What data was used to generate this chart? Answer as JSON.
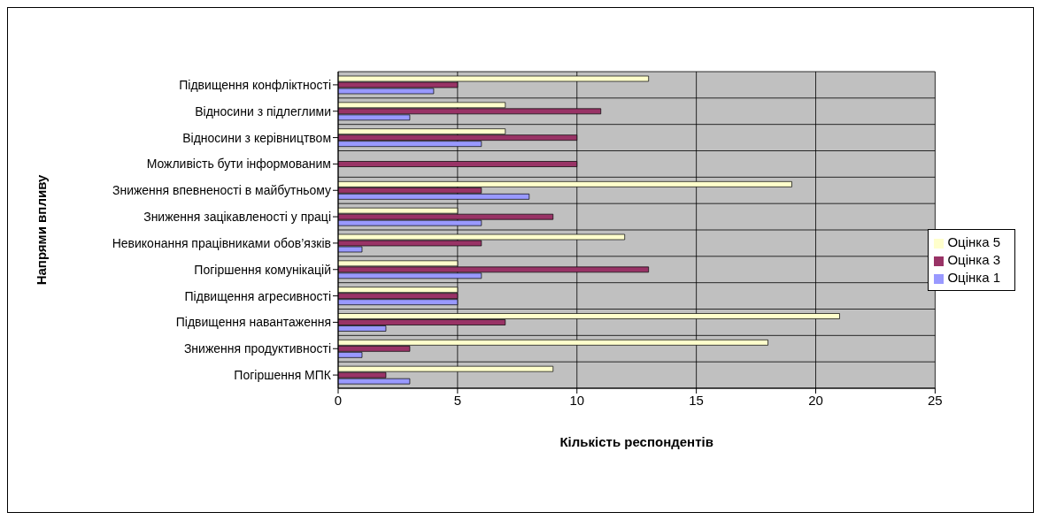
{
  "chart_data": {
    "type": "bar",
    "orientation": "horizontal",
    "xlabel": "Кількість респондентів",
    "ylabel": "Напрями впливу",
    "categories": [
      "Підвищення конфліктності",
      "Відносини з підлеглими",
      "Відносини з керівництвом",
      "Можливість бути інформованим ",
      "Зниження впевненості в майбутньому",
      "Зниження зацікавленості у праці",
      "Невиконання працівниками  обов’язків",
      "Погіршення комунікацій ",
      "Підвищення агресивності ",
      "Підвищення навантаження",
      "Зниження продуктивності ",
      "Погіршення МПК"
    ],
    "series": [
      {
        "name": "Оцінка 5",
        "color": "#ffffcc",
        "values": [
          13,
          7,
          7,
          0,
          19,
          5,
          12,
          5,
          5,
          21,
          18,
          9
        ]
      },
      {
        "name": "Оцінка 3",
        "color": "#993366",
        "values": [
          5,
          11,
          10,
          10,
          6,
          9,
          6,
          13,
          5,
          7,
          3,
          2
        ]
      },
      {
        "name": "Оцінка 1",
        "color": "#9999ff",
        "values": [
          4,
          3,
          6,
          0,
          8,
          6,
          1,
          6,
          5,
          2,
          1,
          3
        ]
      }
    ],
    "xlim": [
      0,
      25
    ],
    "xticks": [
      0,
      5,
      10,
      15,
      20,
      25
    ],
    "grid": true,
    "legend": "right"
  }
}
